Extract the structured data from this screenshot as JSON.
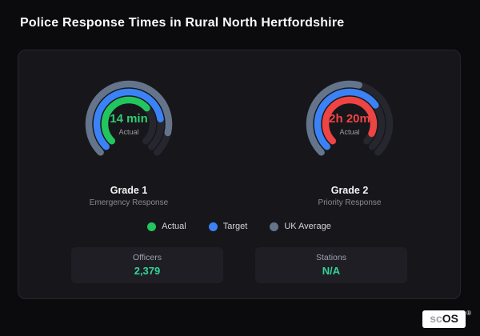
{
  "page": {
    "title": "Police Response Times in Rural North Hertfordshire"
  },
  "chart_data": [
    {
      "type": "gauge",
      "name": "Grade 1",
      "subtitle": "Emergency Response",
      "center_value": "14 min",
      "center_label": "Actual",
      "value_color": "#2ecc71",
      "rings": [
        {
          "name": "UK Average",
          "color": "#64748b",
          "percent": 88
        },
        {
          "name": "Target",
          "color": "#3b82f6",
          "percent": 80
        },
        {
          "name": "Actual",
          "color": "#22c55e",
          "percent": 68
        }
      ],
      "track_color": "#26262e",
      "sweep_degrees": 270
    },
    {
      "type": "gauge",
      "name": "Grade 2",
      "subtitle": "Priority Response",
      "center_value": "2h 20m",
      "center_label": "Actual",
      "value_color": "#ef4444",
      "rings": [
        {
          "name": "UK Average",
          "color": "#64748b",
          "percent": 55
        },
        {
          "name": "Target",
          "color": "#3b82f6",
          "percent": 70
        },
        {
          "name": "Actual",
          "color": "#ef4444",
          "percent": 92
        }
      ],
      "track_color": "#26262e",
      "sweep_degrees": 270
    }
  ],
  "legend": [
    {
      "label": "Actual",
      "color": "#22c55e"
    },
    {
      "label": "Target",
      "color": "#3b82f6"
    },
    {
      "label": "UK Average",
      "color": "#64748b"
    }
  ],
  "stats": [
    {
      "label": "Officers",
      "value": "2,379"
    },
    {
      "label": "Stations",
      "value": "N/A"
    }
  ],
  "branding": {
    "text_gray": "sc",
    "text_dark": "OS",
    "registered": "®"
  }
}
